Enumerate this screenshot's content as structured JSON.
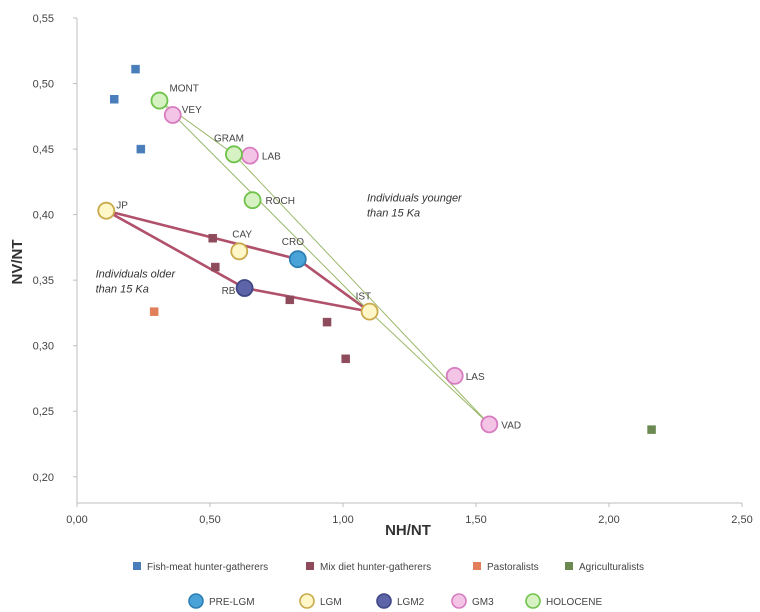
{
  "chart_data": {
    "type": "scatter",
    "xlabel": "NH/NT",
    "ylabel": "NV/NT",
    "xlim": [
      0,
      2.5
    ],
    "ylim": [
      0.18,
      0.55
    ],
    "x_ticks": [
      "0,00",
      "0,50",
      "1,00",
      "1,50",
      "2,00",
      "2,50"
    ],
    "y_ticks": [
      "0,20",
      "0,25",
      "0,30",
      "0,35",
      "0,40",
      "0,45",
      "0,50",
      "0,55"
    ],
    "grid": false,
    "legend_position": "bottom",
    "square_series": [
      {
        "name": "Fish-meat hunter-gatherers",
        "color": "#4a7ebb",
        "points": [
          [
            0.22,
            0.511
          ],
          [
            0.14,
            0.488
          ],
          [
            0.24,
            0.45
          ]
        ]
      },
      {
        "name": "Mix diet hunter-gatherers",
        "color": "#8e4b5c",
        "points": [
          [
            0.51,
            0.382
          ],
          [
            0.52,
            0.36
          ],
          [
            0.8,
            0.335
          ],
          [
            0.94,
            0.318
          ],
          [
            1.01,
            0.29
          ]
        ]
      },
      {
        "name": "Pastoralists",
        "color": "#e07f5a",
        "points": [
          [
            0.29,
            0.326
          ]
        ]
      },
      {
        "name": "Agriculturalists",
        "color": "#6a8a52",
        "points": [
          [
            2.16,
            0.236
          ]
        ]
      }
    ],
    "circle_series": [
      {
        "name": "PRE-LGM",
        "fill": "#4aa3d8",
        "stroke": "#2d7fb3",
        "points": [
          {
            "x": 0.83,
            "y": 0.366,
            "label": "CRO",
            "r": 8
          }
        ]
      },
      {
        "name": "LGM",
        "fill": "#fff7c8",
        "stroke": "#c9a94a",
        "points": [
          {
            "x": 0.11,
            "y": 0.403,
            "label": "JP",
            "r": 8
          },
          {
            "x": 0.61,
            "y": 0.372,
            "label": "CAY",
            "r": 8
          },
          {
            "x": 1.1,
            "y": 0.326,
            "label": "IST",
            "r": 8
          }
        ]
      },
      {
        "name": "LGM2",
        "fill": "#5d65a8",
        "stroke": "#3f4786",
        "points": [
          {
            "x": 0.63,
            "y": 0.344,
            "label": "RB",
            "r": 8
          }
        ]
      },
      {
        "name": "GM3",
        "fill": "#f4c4e6",
        "stroke": "#d77cc0",
        "points": [
          {
            "x": 0.36,
            "y": 0.476,
            "label": "VEY",
            "r": 8
          },
          {
            "x": 0.65,
            "y": 0.445,
            "label": "LAB",
            "r": 8
          },
          {
            "x": 1.42,
            "y": 0.277,
            "label": "LAS",
            "r": 8
          },
          {
            "x": 1.55,
            "y": 0.24,
            "label": "VAD",
            "r": 8
          }
        ]
      },
      {
        "name": "HOLOCENE",
        "fill": "#d6f2c2",
        "stroke": "#6fc24a",
        "points": [
          {
            "x": 0.31,
            "y": 0.487,
            "label": "MONT",
            "r": 8
          },
          {
            "x": 0.59,
            "y": 0.446,
            "label": "GRAM",
            "r": 8
          },
          {
            "x": 0.66,
            "y": 0.411,
            "label": "ROCH",
            "r": 8
          }
        ]
      }
    ],
    "polygons": [
      {
        "name": "Individuals older than 15 Ka",
        "color": "#b0506a",
        "points": [
          [
            0.11,
            0.403
          ],
          [
            0.83,
            0.366
          ],
          [
            1.1,
            0.326
          ],
          [
            0.63,
            0.344
          ]
        ]
      },
      {
        "name": "Individuals younger than 15 Ka",
        "color": "#9bb86a",
        "points": [
          [
            0.31,
            0.487
          ],
          [
            1.1,
            0.326
          ],
          [
            1.55,
            0.24
          ],
          [
            0.59,
            0.446
          ]
        ]
      }
    ],
    "annotations": [
      {
        "lines": [
          "Individuals younger",
          "than 15 Ka"
        ],
        "x": 1.09,
        "y": 0.41
      },
      {
        "lines": [
          "Individuals older",
          "than 15 Ka"
        ],
        "x": 0.07,
        "y": 0.352
      }
    ]
  }
}
